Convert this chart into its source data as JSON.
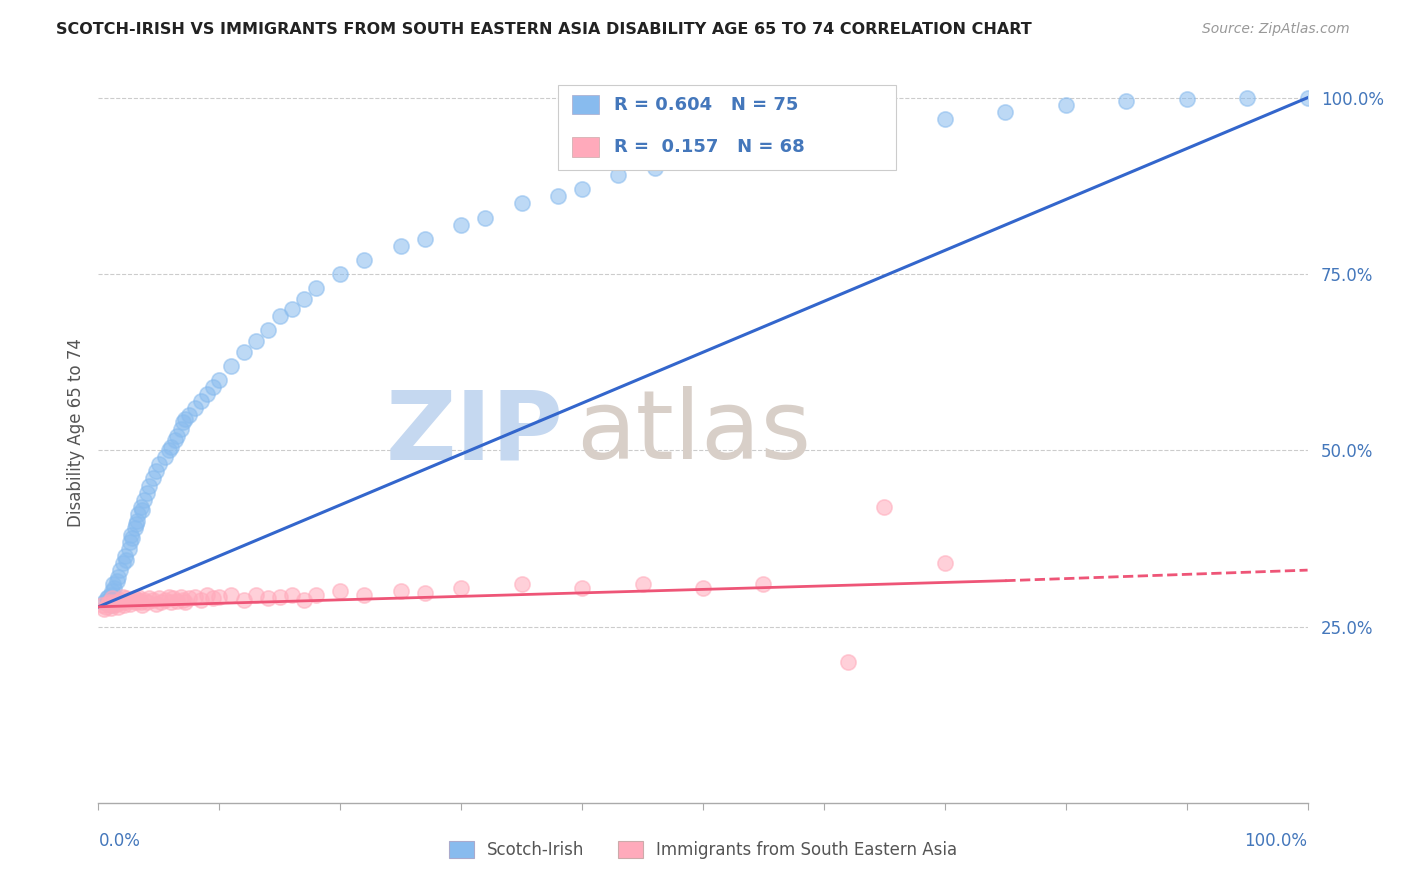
{
  "title": "SCOTCH-IRISH VS IMMIGRANTS FROM SOUTH EASTERN ASIA DISABILITY AGE 65 TO 74 CORRELATION CHART",
  "source": "Source: ZipAtlas.com",
  "ylabel": "Disability Age 65 to 74",
  "legend1_label": "Scotch-Irish",
  "legend2_label": "Immigrants from South Eastern Asia",
  "R1": 0.604,
  "N1": 75,
  "R2": 0.157,
  "N2": 68,
  "blue_color": "#88bbee",
  "pink_color": "#ffaabb",
  "line_blue": "#3366cc",
  "line_pink": "#ee5577",
  "title_color": "#222222",
  "axis_label_color": "#4477bb",
  "background_color": "#ffffff",
  "xlim": [
    0.0,
    1.0
  ],
  "ylim": [
    0.0,
    1.05
  ],
  "right_yticks": [
    0.25,
    0.5,
    0.75,
    1.0
  ],
  "right_yticklabels": [
    "25.0%",
    "50.0%",
    "75.0%",
    "100.0%"
  ],
  "blue_scatter_x": [
    0.005,
    0.007,
    0.008,
    0.009,
    0.01,
    0.01,
    0.011,
    0.012,
    0.013,
    0.015,
    0.016,
    0.018,
    0.02,
    0.022,
    0.023,
    0.025,
    0.026,
    0.027,
    0.028,
    0.03,
    0.031,
    0.032,
    0.033,
    0.035,
    0.036,
    0.038,
    0.04,
    0.042,
    0.045,
    0.048,
    0.05,
    0.055,
    0.058,
    0.06,
    0.063,
    0.065,
    0.068,
    0.07,
    0.072,
    0.075,
    0.08,
    0.085,
    0.09,
    0.095,
    0.1,
    0.11,
    0.12,
    0.13,
    0.14,
    0.15,
    0.16,
    0.17,
    0.18,
    0.2,
    0.22,
    0.25,
    0.27,
    0.3,
    0.32,
    0.35,
    0.38,
    0.4,
    0.43,
    0.46,
    0.5,
    0.55,
    0.6,
    0.65,
    0.7,
    0.75,
    0.8,
    0.85,
    0.9,
    0.95,
    1.0
  ],
  "blue_scatter_y": [
    0.285,
    0.29,
    0.292,
    0.288,
    0.295,
    0.28,
    0.3,
    0.31,
    0.305,
    0.315,
    0.32,
    0.33,
    0.34,
    0.35,
    0.345,
    0.36,
    0.37,
    0.38,
    0.375,
    0.39,
    0.395,
    0.4,
    0.41,
    0.42,
    0.415,
    0.43,
    0.44,
    0.45,
    0.46,
    0.47,
    0.48,
    0.49,
    0.5,
    0.505,
    0.515,
    0.52,
    0.53,
    0.54,
    0.545,
    0.55,
    0.56,
    0.57,
    0.58,
    0.59,
    0.6,
    0.62,
    0.64,
    0.655,
    0.67,
    0.69,
    0.7,
    0.715,
    0.73,
    0.75,
    0.77,
    0.79,
    0.8,
    0.82,
    0.83,
    0.85,
    0.86,
    0.87,
    0.89,
    0.9,
    0.92,
    0.94,
    0.95,
    0.96,
    0.97,
    0.98,
    0.99,
    0.995,
    0.998,
    1.0,
    1.0
  ],
  "pink_scatter_x": [
    0.003,
    0.005,
    0.006,
    0.008,
    0.009,
    0.01,
    0.011,
    0.012,
    0.013,
    0.015,
    0.016,
    0.017,
    0.018,
    0.02,
    0.021,
    0.022,
    0.023,
    0.025,
    0.026,
    0.028,
    0.03,
    0.031,
    0.032,
    0.033,
    0.035,
    0.036,
    0.038,
    0.04,
    0.042,
    0.045,
    0.048,
    0.05,
    0.052,
    0.055,
    0.058,
    0.06,
    0.062,
    0.065,
    0.068,
    0.07,
    0.072,
    0.075,
    0.08,
    0.085,
    0.09,
    0.095,
    0.1,
    0.11,
    0.12,
    0.13,
    0.14,
    0.15,
    0.16,
    0.17,
    0.18,
    0.2,
    0.22,
    0.25,
    0.27,
    0.3,
    0.35,
    0.4,
    0.45,
    0.5,
    0.55,
    0.62,
    0.65,
    0.7
  ],
  "pink_scatter_y": [
    0.28,
    0.275,
    0.278,
    0.282,
    0.285,
    0.276,
    0.29,
    0.28,
    0.285,
    0.282,
    0.278,
    0.285,
    0.288,
    0.292,
    0.28,
    0.285,
    0.29,
    0.288,
    0.282,
    0.286,
    0.29,
    0.285,
    0.288,
    0.292,
    0.285,
    0.28,
    0.288,
    0.285,
    0.29,
    0.288,
    0.282,
    0.29,
    0.285,
    0.288,
    0.292,
    0.285,
    0.29,
    0.286,
    0.292,
    0.288,
    0.285,
    0.29,
    0.292,
    0.288,
    0.295,
    0.29,
    0.292,
    0.295,
    0.288,
    0.295,
    0.29,
    0.292,
    0.295,
    0.288,
    0.295,
    0.3,
    0.295,
    0.3,
    0.298,
    0.305,
    0.31,
    0.305,
    0.31,
    0.305,
    0.31,
    0.2,
    0.42,
    0.34
  ]
}
